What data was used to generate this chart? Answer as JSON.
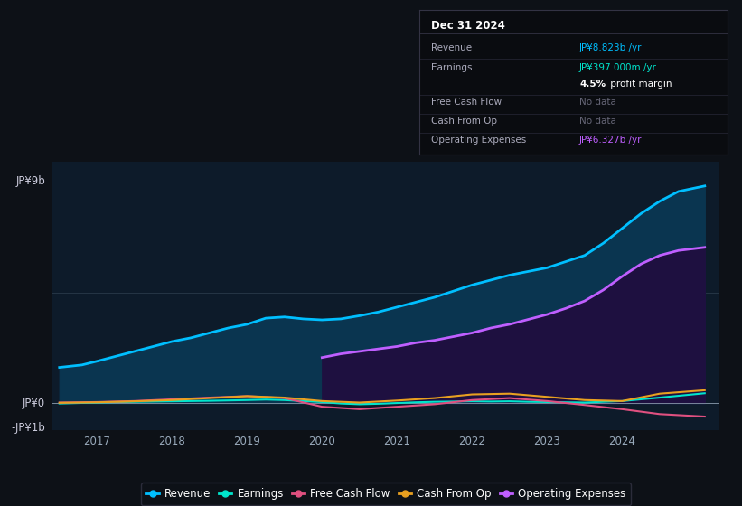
{
  "bg_color": "#0d1117",
  "plot_bg_color": "#0d1b2a",
  "ylim": [
    -1.1,
    9.8
  ],
  "xlim": [
    2016.4,
    2025.3
  ],
  "x_ticks": [
    2017,
    2018,
    2019,
    2020,
    2021,
    2022,
    2023,
    2024
  ],
  "y_label_top": "JP¥9b",
  "y_label_zero": "JP¥0",
  "y_label_bottom": "-JP¥1b",
  "y_top_val": 9.0,
  "y_zero_val": 0.0,
  "y_bottom_val": -1.0,
  "grid_color": "#253545",
  "info_box": {
    "title": "Dec 31 2024",
    "title_color": "#ffffff",
    "border_color": "#333344",
    "bg_color": "#0a0c10",
    "rows": [
      {
        "label": "Revenue",
        "value": "JP¥8.823b /yr",
        "value_color": "#00bfff",
        "no_data": false
      },
      {
        "label": "Earnings",
        "value": "JP¥397.000m /yr",
        "value_color": "#00e5cc",
        "no_data": false
      },
      {
        "label": "",
        "value": "4.5% profit margin",
        "value_color": "#ffffff",
        "no_data": false,
        "bold_part": "4.5%"
      },
      {
        "label": "Free Cash Flow",
        "value": "No data",
        "value_color": "#666677",
        "no_data": true
      },
      {
        "label": "Cash From Op",
        "value": "No data",
        "value_color": "#666677",
        "no_data": true
      },
      {
        "label": "Operating Expenses",
        "value": "JP¥6.327b /yr",
        "value_color": "#bf5fff",
        "no_data": false
      }
    ]
  },
  "revenue": {
    "x": [
      2016.5,
      2016.8,
      2017.0,
      2017.25,
      2017.5,
      2017.75,
      2018.0,
      2018.25,
      2018.5,
      2018.75,
      2019.0,
      2019.25,
      2019.5,
      2019.75,
      2020.0,
      2020.25,
      2020.5,
      2020.75,
      2021.0,
      2021.25,
      2021.5,
      2021.75,
      2022.0,
      2022.25,
      2022.5,
      2022.75,
      2023.0,
      2023.25,
      2023.5,
      2023.75,
      2024.0,
      2024.25,
      2024.5,
      2024.75,
      2025.1
    ],
    "y": [
      1.45,
      1.55,
      1.7,
      1.9,
      2.1,
      2.3,
      2.5,
      2.65,
      2.85,
      3.05,
      3.2,
      3.45,
      3.5,
      3.42,
      3.38,
      3.42,
      3.55,
      3.7,
      3.9,
      4.1,
      4.3,
      4.55,
      4.8,
      5.0,
      5.2,
      5.35,
      5.5,
      5.75,
      6.0,
      6.5,
      7.1,
      7.7,
      8.2,
      8.6,
      8.823
    ],
    "color": "#00bfff",
    "fill_color": "#0a3550",
    "lw": 2.0
  },
  "op_expenses": {
    "x": [
      2020.0,
      2020.25,
      2020.5,
      2020.75,
      2021.0,
      2021.25,
      2021.5,
      2021.75,
      2022.0,
      2022.25,
      2022.5,
      2022.75,
      2023.0,
      2023.25,
      2023.5,
      2023.75,
      2024.0,
      2024.25,
      2024.5,
      2024.75,
      2025.1
    ],
    "y": [
      1.85,
      2.0,
      2.1,
      2.2,
      2.3,
      2.45,
      2.55,
      2.7,
      2.85,
      3.05,
      3.2,
      3.4,
      3.6,
      3.85,
      4.15,
      4.6,
      5.15,
      5.65,
      6.0,
      6.2,
      6.327
    ],
    "color": "#bf5fff",
    "fill_color": "#1e1040",
    "lw": 2.0
  },
  "earnings": {
    "x": [
      2016.5,
      2017.0,
      2017.5,
      2018.0,
      2018.5,
      2019.0,
      2019.25,
      2019.5,
      2019.75,
      2020.0,
      2020.25,
      2020.5,
      2020.75,
      2021.0,
      2021.25,
      2021.5,
      2022.0,
      2022.25,
      2022.5,
      2022.75,
      2023.0,
      2023.5,
      2024.0,
      2024.5,
      2025.1
    ],
    "y": [
      -0.02,
      0.02,
      0.05,
      0.07,
      0.09,
      0.12,
      0.14,
      0.12,
      0.08,
      0.04,
      -0.02,
      -0.05,
      -0.03,
      0.0,
      0.03,
      0.05,
      0.07,
      0.06,
      0.07,
      0.05,
      0.04,
      0.02,
      0.08,
      0.22,
      0.397
    ],
    "color": "#00e5cc",
    "lw": 1.5
  },
  "free_cash_flow": {
    "x": [
      2016.5,
      2017.0,
      2017.5,
      2018.0,
      2018.5,
      2019.0,
      2019.5,
      2020.0,
      2020.5,
      2021.0,
      2021.5,
      2022.0,
      2022.5,
      2023.0,
      2023.5,
      2024.0,
      2024.5,
      2025.1
    ],
    "y": [
      0.02,
      0.04,
      0.08,
      0.15,
      0.22,
      0.28,
      0.2,
      -0.15,
      -0.25,
      -0.15,
      -0.05,
      0.12,
      0.2,
      0.08,
      -0.08,
      -0.25,
      -0.45,
      -0.55
    ],
    "color": "#e05080",
    "lw": 1.5
  },
  "cash_from_op": {
    "x": [
      2016.5,
      2017.0,
      2017.5,
      2018.0,
      2018.5,
      2019.0,
      2019.5,
      2020.0,
      2020.5,
      2021.0,
      2021.5,
      2022.0,
      2022.5,
      2023.0,
      2023.5,
      2024.0,
      2024.5,
      2025.1
    ],
    "y": [
      0.01,
      0.03,
      0.07,
      0.12,
      0.2,
      0.28,
      0.22,
      0.08,
      0.02,
      0.1,
      0.2,
      0.35,
      0.38,
      0.25,
      0.12,
      0.08,
      0.38,
      0.52
    ],
    "color": "#e8a020",
    "lw": 1.5
  },
  "legend_items": [
    {
      "label": "Revenue",
      "color": "#00bfff"
    },
    {
      "label": "Earnings",
      "color": "#00e5cc"
    },
    {
      "label": "Free Cash Flow",
      "color": "#e05080"
    },
    {
      "label": "Cash From Op",
      "color": "#e8a020"
    },
    {
      "label": "Operating Expenses",
      "color": "#bf5fff"
    }
  ]
}
